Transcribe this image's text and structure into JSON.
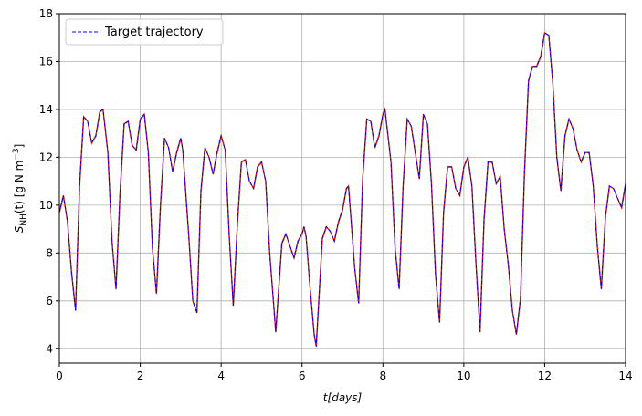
{
  "chart_data": {
    "type": "line",
    "xlabel_base": "t",
    "xlabel_unit": "[days]",
    "ylabel_main": "S",
    "ylabel_sub": "NH",
    "ylabel_rest": "(t) [g N m",
    "ylabel_sup": "−3",
    "ylabel_close": "]",
    "xlim": [
      0,
      14
    ],
    "ylim": [
      3.4,
      18
    ],
    "xticks": [
      0,
      2,
      4,
      6,
      8,
      10,
      12,
      14
    ],
    "yticks": [
      4,
      6,
      8,
      10,
      12,
      14,
      16,
      18
    ],
    "grid": true,
    "legend_position": "top-left",
    "colors": {
      "target": "#0000ff",
      "red": "#ff0000",
      "green": "#7fd36a",
      "orange": "#f0b050",
      "grid": "#b0b0b0"
    },
    "series": [
      {
        "name": "Target trajectory",
        "style": "dashed",
        "color": "#0000ff",
        "points": [
          [
            0.0,
            9.7
          ],
          [
            0.1,
            10.4
          ],
          [
            0.2,
            9.3
          ],
          [
            0.3,
            7.2
          ],
          [
            0.4,
            5.6
          ],
          [
            0.5,
            10.8
          ],
          [
            0.6,
            13.7
          ],
          [
            0.7,
            13.5
          ],
          [
            0.8,
            12.6
          ],
          [
            0.9,
            12.9
          ],
          [
            1.0,
            13.9
          ],
          [
            1.08,
            14.0
          ],
          [
            1.2,
            12.2
          ],
          [
            1.3,
            8.5
          ],
          [
            1.4,
            6.5
          ],
          [
            1.5,
            10.5
          ],
          [
            1.6,
            13.4
          ],
          [
            1.7,
            13.5
          ],
          [
            1.8,
            12.5
          ],
          [
            1.9,
            12.3
          ],
          [
            2.0,
            13.6
          ],
          [
            2.1,
            13.8
          ],
          [
            2.2,
            12.2
          ],
          [
            2.3,
            8.2
          ],
          [
            2.4,
            6.3
          ],
          [
            2.5,
            10.0
          ],
          [
            2.6,
            12.8
          ],
          [
            2.7,
            12.4
          ],
          [
            2.8,
            11.4
          ],
          [
            2.9,
            12.2
          ],
          [
            3.0,
            12.8
          ],
          [
            3.05,
            12.3
          ],
          [
            3.2,
            8.7
          ],
          [
            3.3,
            6.0
          ],
          [
            3.4,
            5.5
          ],
          [
            3.5,
            10.6
          ],
          [
            3.6,
            12.4
          ],
          [
            3.7,
            12.0
          ],
          [
            3.8,
            11.3
          ],
          [
            3.9,
            12.2
          ],
          [
            4.0,
            12.9
          ],
          [
            4.1,
            12.3
          ],
          [
            4.2,
            8.7
          ],
          [
            4.3,
            5.8
          ],
          [
            4.4,
            9.2
          ],
          [
            4.5,
            11.8
          ],
          [
            4.6,
            11.9
          ],
          [
            4.7,
            11.0
          ],
          [
            4.8,
            10.7
          ],
          [
            4.9,
            11.6
          ],
          [
            5.0,
            11.8
          ],
          [
            5.1,
            11.0
          ],
          [
            5.2,
            8.0
          ],
          [
            5.3,
            5.8
          ],
          [
            5.35,
            4.7
          ],
          [
            5.5,
            8.4
          ],
          [
            5.6,
            8.8
          ],
          [
            5.7,
            8.3
          ],
          [
            5.8,
            7.8
          ],
          [
            5.9,
            8.5
          ],
          [
            6.0,
            8.8
          ],
          [
            6.05,
            9.1
          ],
          [
            6.1,
            8.7
          ],
          [
            6.2,
            6.5
          ],
          [
            6.3,
            4.6
          ],
          [
            6.35,
            4.1
          ],
          [
            6.5,
            8.6
          ],
          [
            6.6,
            9.1
          ],
          [
            6.7,
            8.9
          ],
          [
            6.8,
            8.5
          ],
          [
            6.9,
            9.3
          ],
          [
            7.0,
            9.8
          ],
          [
            7.1,
            10.7
          ],
          [
            7.15,
            10.8
          ],
          [
            7.3,
            7.4
          ],
          [
            7.4,
            5.9
          ],
          [
            7.5,
            11.1
          ],
          [
            7.6,
            13.6
          ],
          [
            7.7,
            13.5
          ],
          [
            7.8,
            12.4
          ],
          [
            7.9,
            12.9
          ],
          [
            8.0,
            13.8
          ],
          [
            8.05,
            14.0
          ],
          [
            8.2,
            11.8
          ],
          [
            8.3,
            8.2
          ],
          [
            8.4,
            6.5
          ],
          [
            8.5,
            10.8
          ],
          [
            8.6,
            13.6
          ],
          [
            8.7,
            13.3
          ],
          [
            8.8,
            12.2
          ],
          [
            8.9,
            11.1
          ],
          [
            9.0,
            13.8
          ],
          [
            9.1,
            13.4
          ],
          [
            9.2,
            10.9
          ],
          [
            9.3,
            7.1
          ],
          [
            9.4,
            5.1
          ],
          [
            9.5,
            9.7
          ],
          [
            9.6,
            11.6
          ],
          [
            9.7,
            11.6
          ],
          [
            9.8,
            10.7
          ],
          [
            9.9,
            10.4
          ],
          [
            10.0,
            11.6
          ],
          [
            10.1,
            12.0
          ],
          [
            10.2,
            10.8
          ],
          [
            10.3,
            7.6
          ],
          [
            10.4,
            4.7
          ],
          [
            10.5,
            9.4
          ],
          [
            10.6,
            11.8
          ],
          [
            10.7,
            11.8
          ],
          [
            10.8,
            10.9
          ],
          [
            10.9,
            11.2
          ],
          [
            11.0,
            9.0
          ],
          [
            11.1,
            7.5
          ],
          [
            11.2,
            5.6
          ],
          [
            11.3,
            4.6
          ],
          [
            11.4,
            6.1
          ],
          [
            11.5,
            11.4
          ],
          [
            11.6,
            15.2
          ],
          [
            11.7,
            15.8
          ],
          [
            11.8,
            15.8
          ],
          [
            11.9,
            16.2
          ],
          [
            12.0,
            17.2
          ],
          [
            12.1,
            17.1
          ],
          [
            12.2,
            15.1
          ],
          [
            12.3,
            12.0
          ],
          [
            12.4,
            10.6
          ],
          [
            12.5,
            12.9
          ],
          [
            12.6,
            13.6
          ],
          [
            12.7,
            13.2
          ],
          [
            12.8,
            12.3
          ],
          [
            12.9,
            11.8
          ],
          [
            13.0,
            12.2
          ],
          [
            13.1,
            12.2
          ],
          [
            13.2,
            10.8
          ],
          [
            13.3,
            8.3
          ],
          [
            13.4,
            6.5
          ],
          [
            13.5,
            9.5
          ],
          [
            13.6,
            10.8
          ],
          [
            13.7,
            10.7
          ],
          [
            13.8,
            10.3
          ],
          [
            13.9,
            9.9
          ],
          [
            14.0,
            10.9
          ]
        ]
      }
    ]
  }
}
